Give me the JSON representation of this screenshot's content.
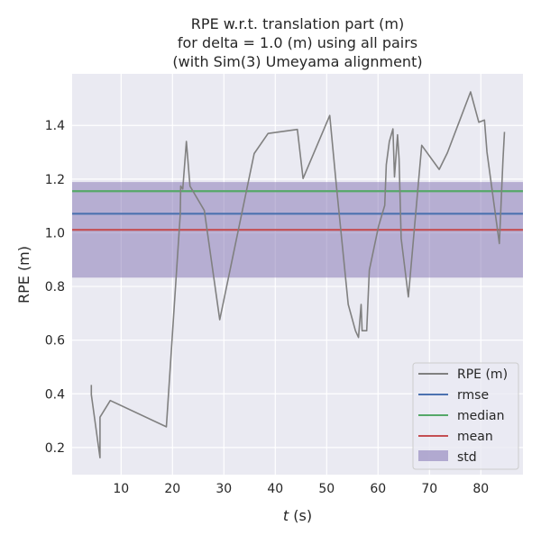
{
  "chart_data": {
    "type": "line",
    "title": [
      "RPE w.r.t. translation part (m)",
      "for delta = 1.0 (m) using all pairs",
      "(with Sim(3) Umeyama alignment)"
    ],
    "xlabel_italic": "t",
    "xlabel_rest": " (s)",
    "ylabel": "RPE (m)",
    "xlim": [
      0.47,
      88.2
    ],
    "ylim": [
      0.099,
      1.592
    ],
    "xticks": [
      10,
      20,
      30,
      40,
      50,
      60,
      70,
      80
    ],
    "yticks": [
      0.2,
      0.4,
      0.6,
      0.8,
      1.0,
      1.2,
      1.4
    ],
    "grid": true,
    "series": [
      {
        "name": "RPE (m)",
        "color": "#808080",
        "x": [
          4.2,
          4.2,
          5.9,
          5.9,
          7.9,
          18.8,
          21.5,
          21.6,
          22.0,
          22.7,
          23.4,
          26.2,
          29.2,
          35.9,
          38.6,
          44.3,
          45.4,
          50.6,
          51.9,
          54.2,
          55.6,
          56.2,
          56.7,
          56.9,
          57.8,
          58.3,
          60.1,
          61.3,
          61.6,
          62.2,
          62.9,
          63.2,
          63.8,
          64.1,
          64.5,
          65.9,
          68.5,
          71.9,
          73.5,
          78.0,
          79.6,
          80.7,
          81.2,
          83.6,
          84.3,
          84.6
        ],
        "y": [
          0.433,
          0.397,
          0.162,
          0.313,
          0.375,
          0.277,
          1.068,
          1.174,
          1.163,
          1.34,
          1.174,
          1.083,
          0.676,
          1.295,
          1.37,
          1.385,
          1.202,
          1.437,
          1.174,
          0.733,
          0.635,
          0.61,
          0.733,
          0.635,
          0.635,
          0.861,
          1.024,
          1.102,
          1.253,
          1.34,
          1.387,
          1.208,
          1.365,
          1.275,
          0.979,
          0.761,
          1.326,
          1.236,
          1.298,
          1.525,
          1.412,
          1.42,
          1.3,
          0.96,
          1.27,
          1.376
        ]
      }
    ],
    "stats": {
      "rmse": {
        "label": "rmse",
        "value": 1.071,
        "color": "#4c72b0"
      },
      "median": {
        "label": "median",
        "value": 1.155,
        "color": "#55a868"
      },
      "mean": {
        "label": "mean",
        "value": 1.011,
        "color": "#c44e52"
      },
      "std": {
        "label": "std",
        "value": 0.178,
        "color": "#8172b2"
      }
    },
    "legend": {
      "placement": "lower-right",
      "entries": [
        "RPE (m)",
        "rmse",
        "median",
        "mean",
        "std"
      ]
    }
  }
}
